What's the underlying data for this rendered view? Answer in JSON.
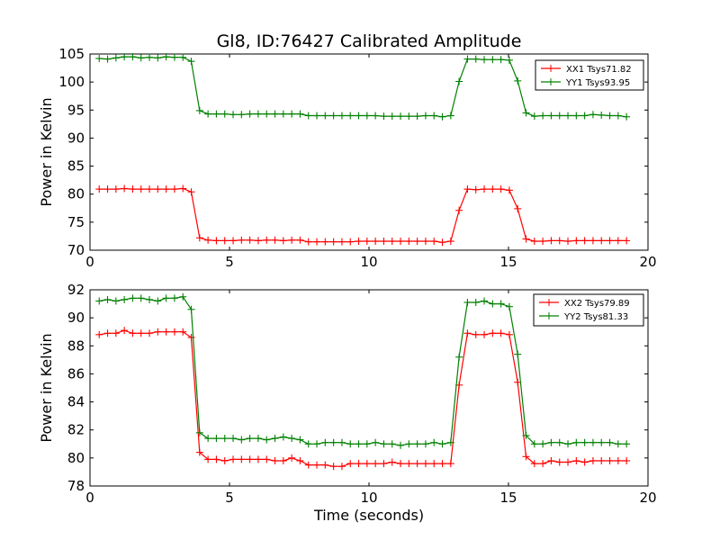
{
  "figure": {
    "title": "Gl8, ID:76427 Calibrated Amplitude"
  },
  "chart_data": [
    {
      "type": "line",
      "title": "Gl8, ID:76427 Calibrated Amplitude",
      "xlabel": "",
      "ylabel": "Power in Kelvin",
      "xlim": [
        0,
        20
      ],
      "ylim": [
        70,
        105
      ],
      "xticks": [
        "0",
        "5",
        "10",
        "15",
        "20"
      ],
      "yticks": [
        "70",
        "75",
        "80",
        "85",
        "90",
        "95",
        "100",
        "105"
      ],
      "legend_position": "top-right",
      "grid": false,
      "x": [
        0.33,
        0.63,
        0.93,
        1.23,
        1.53,
        1.83,
        2.13,
        2.43,
        2.73,
        3.03,
        3.33,
        3.63,
        3.93,
        4.23,
        4.53,
        4.83,
        5.13,
        5.43,
        5.73,
        6.03,
        6.33,
        6.63,
        6.93,
        7.23,
        7.53,
        7.83,
        8.13,
        8.43,
        8.73,
        9.03,
        9.33,
        9.63,
        9.93,
        10.23,
        10.53,
        10.83,
        11.13,
        11.43,
        11.73,
        12.03,
        12.33,
        12.63,
        12.93,
        13.23,
        13.53,
        13.83,
        14.13,
        14.43,
        14.73,
        15.03,
        15.33,
        15.63,
        15.93,
        16.23,
        16.53,
        16.83,
        17.13,
        17.43,
        17.73,
        18.03,
        18.33,
        18.63,
        18.93,
        19.23
      ],
      "series": [
        {
          "name": "XX1 Tsys71.82",
          "color": "#ff0000",
          "values": [
            80.9,
            80.9,
            80.9,
            81.0,
            80.9,
            80.9,
            80.9,
            80.9,
            80.9,
            80.9,
            81.0,
            80.4,
            72.2,
            71.8,
            71.7,
            71.7,
            71.7,
            71.8,
            71.8,
            71.7,
            71.8,
            71.8,
            71.7,
            71.8,
            71.8,
            71.5,
            71.5,
            71.5,
            71.5,
            71.5,
            71.5,
            71.6,
            71.6,
            71.6,
            71.6,
            71.6,
            71.6,
            71.6,
            71.6,
            71.6,
            71.6,
            71.4,
            71.6,
            77.1,
            80.9,
            80.8,
            80.9,
            80.9,
            80.9,
            80.7,
            77.4,
            72.0,
            71.6,
            71.6,
            71.7,
            71.7,
            71.6,
            71.7,
            71.7,
            71.7,
            71.7,
            71.7,
            71.7,
            71.7
          ]
        },
        {
          "name": "YY1 Tsys93.95",
          "color": "#008000",
          "values": [
            104.2,
            104.1,
            104.3,
            104.5,
            104.5,
            104.3,
            104.4,
            104.3,
            104.5,
            104.4,
            104.4,
            103.7,
            94.9,
            94.3,
            94.3,
            94.3,
            94.2,
            94.2,
            94.3,
            94.3,
            94.3,
            94.3,
            94.3,
            94.3,
            94.3,
            94.0,
            94.0,
            94.0,
            94.0,
            94.0,
            94.0,
            94.0,
            94.0,
            94.0,
            93.9,
            93.9,
            93.9,
            93.9,
            93.9,
            94.0,
            94.0,
            93.8,
            94.0,
            100.1,
            104.1,
            104.1,
            104.0,
            104.0,
            104.0,
            103.9,
            100.2,
            94.5,
            93.9,
            94.0,
            94.0,
            94.0,
            94.0,
            94.0,
            94.0,
            94.2,
            94.1,
            94.0,
            94.0,
            93.8
          ]
        }
      ]
    },
    {
      "type": "line",
      "title": "",
      "xlabel": "Time (seconds)",
      "ylabel": "Power in Kelvin",
      "xlim": [
        0,
        20
      ],
      "ylim": [
        78,
        92
      ],
      "xticks": [
        "0",
        "5",
        "10",
        "15",
        "20"
      ],
      "yticks": [
        "78",
        "80",
        "82",
        "84",
        "86",
        "88",
        "90",
        "92"
      ],
      "legend_position": "top-right",
      "grid": false,
      "x": [
        0.33,
        0.63,
        0.93,
        1.23,
        1.53,
        1.83,
        2.13,
        2.43,
        2.73,
        3.03,
        3.33,
        3.63,
        3.93,
        4.23,
        4.53,
        4.83,
        5.13,
        5.43,
        5.73,
        6.03,
        6.33,
        6.63,
        6.93,
        7.23,
        7.53,
        7.83,
        8.13,
        8.43,
        8.73,
        9.03,
        9.33,
        9.63,
        9.93,
        10.23,
        10.53,
        10.83,
        11.13,
        11.43,
        11.73,
        12.03,
        12.33,
        12.63,
        12.93,
        13.23,
        13.53,
        13.83,
        14.13,
        14.43,
        14.73,
        15.03,
        15.33,
        15.63,
        15.93,
        16.23,
        16.53,
        16.83,
        17.13,
        17.43,
        17.73,
        18.03,
        18.33,
        18.63,
        18.93,
        19.23
      ],
      "series": [
        {
          "name": "XX2 Tsys79.89",
          "color": "#ff0000",
          "values": [
            88.8,
            88.9,
            88.9,
            89.1,
            88.9,
            88.9,
            88.9,
            89.0,
            89.0,
            89.0,
            89.0,
            88.6,
            80.4,
            79.9,
            79.9,
            79.8,
            79.9,
            79.9,
            79.9,
            79.9,
            79.9,
            79.8,
            79.8,
            80.0,
            79.8,
            79.5,
            79.5,
            79.5,
            79.4,
            79.4,
            79.6,
            79.6,
            79.6,
            79.6,
            79.6,
            79.7,
            79.6,
            79.6,
            79.6,
            79.6,
            79.6,
            79.6,
            79.6,
            85.2,
            88.9,
            88.8,
            88.8,
            88.9,
            88.9,
            88.8,
            85.4,
            80.1,
            79.6,
            79.6,
            79.8,
            79.7,
            79.7,
            79.8,
            79.7,
            79.8,
            79.8,
            79.8,
            79.8,
            79.8
          ]
        },
        {
          "name": "YY2 Tsys81.33",
          "color": "#008000",
          "values": [
            91.2,
            91.3,
            91.2,
            91.3,
            91.4,
            91.4,
            91.3,
            91.2,
            91.4,
            91.4,
            91.5,
            90.6,
            81.8,
            81.4,
            81.4,
            81.4,
            81.4,
            81.3,
            81.4,
            81.4,
            81.3,
            81.4,
            81.5,
            81.4,
            81.3,
            81.0,
            81.0,
            81.1,
            81.1,
            81.1,
            81.0,
            81.0,
            81.0,
            81.1,
            81.0,
            81.0,
            80.9,
            81.0,
            81.0,
            81.0,
            81.1,
            81.0,
            81.1,
            87.2,
            91.1,
            91.1,
            91.2,
            91.0,
            91.0,
            90.8,
            87.4,
            81.6,
            81.0,
            81.0,
            81.1,
            81.1,
            81.0,
            81.1,
            81.1,
            81.1,
            81.1,
            81.1,
            81.0,
            81.0
          ]
        }
      ]
    }
  ]
}
